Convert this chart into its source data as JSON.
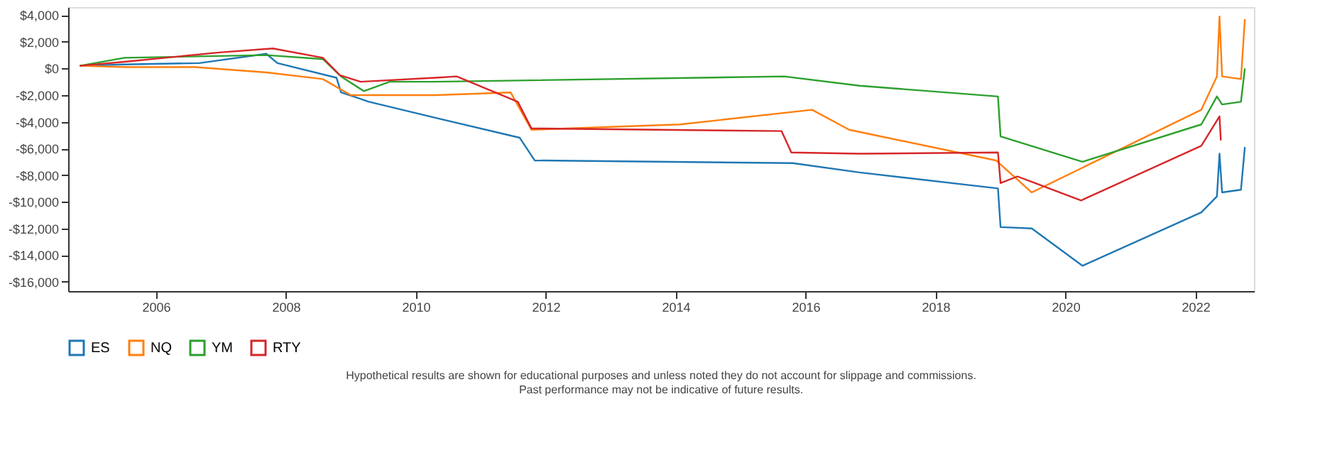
{
  "chart_data": {
    "type": "line",
    "xlim": [
      2004.65,
      2022.9
    ],
    "xticks": [
      2006,
      2008,
      2010,
      2012,
      2014,
      2016,
      2018,
      2020,
      2022
    ],
    "ylim": [
      -16700,
      4600
    ],
    "yticks": [
      {
        "value": 4000,
        "label": "$4,000"
      },
      {
        "value": 2000,
        "label": "$2,000"
      },
      {
        "value": 0,
        "label": "$0"
      },
      {
        "value": -2000,
        "label": "-$2,000"
      },
      {
        "value": -4000,
        "label": "-$4,000"
      },
      {
        "value": -6000,
        "label": "-$6,000"
      },
      {
        "value": -8000,
        "label": "-$8,000"
      },
      {
        "value": -10000,
        "label": "-$10,000"
      },
      {
        "value": -12000,
        "label": "-$12,000"
      },
      {
        "value": -14000,
        "label": "-$14,000"
      },
      {
        "value": -16000,
        "label": "-$16,000"
      }
    ],
    "grid": false,
    "legend": "bottom",
    "marker": "none",
    "line_style": "solid",
    "annotations": [
      "Hypothetical results are shown for educational purposes and unless noted they do not account for slippage and commissions.",
      "Past performance may not be indicative of future results."
    ],
    "series": [
      {
        "name": "ES",
        "color": "#1f77b4",
        "x": [
          2004.83,
          2005.52,
          2006.67,
          2007.7,
          2007.87,
          2008.78,
          2008.85,
          2009.28,
          2010.3,
          2011.6,
          2011.83,
          2015.8,
          2016.83,
          2018.96,
          2019.0,
          2019.48,
          2020.26,
          2022.09,
          2022.33,
          2022.37,
          2022.41,
          2022.7,
          2022.76
        ],
        "values": [
          200,
          300,
          400,
          1100,
          400,
          -700,
          -1800,
          -2500,
          -3700,
          -5200,
          -6900,
          -7100,
          -7800,
          -9000,
          -11900,
          -12000,
          -14800,
          -10800,
          -9600,
          -6400,
          -9300,
          -9100,
          -5900
        ]
      },
      {
        "name": "NQ",
        "color": "#ff7f0e",
        "x": [
          2004.83,
          2005.52,
          2006.6,
          2007.7,
          2008.57,
          2009.0,
          2010.3,
          2011.46,
          2011.78,
          2014.07,
          2016.1,
          2016.67,
          2018.93,
          2019.48,
          2022.09,
          2022.33,
          2022.37,
          2022.41,
          2022.7,
          2022.76
        ],
        "values": [
          200,
          100,
          100,
          -300,
          -800,
          -2000,
          -2000,
          -1800,
          -4600,
          -4200,
          -3100,
          -4600,
          -6900,
          -9300,
          -3100,
          -600,
          3900,
          -600,
          -800,
          3700
        ]
      },
      {
        "name": "YM",
        "color": "#2ca02c",
        "x": [
          2004.83,
          2005.52,
          2007.7,
          2008.57,
          2008.85,
          2009.2,
          2009.6,
          2010.3,
          2015.67,
          2016.83,
          2018.96,
          2019.0,
          2020.26,
          2022.09,
          2022.33,
          2022.41,
          2022.7,
          2022.76
        ],
        "values": [
          200,
          800,
          1000,
          700,
          -600,
          -1700,
          -1000,
          -1000,
          -600,
          -1300,
          -2100,
          -5100,
          -7000,
          -4200,
          -2100,
          -2700,
          -2500,
          0
        ]
      },
      {
        "name": "RTY",
        "color": "#d62728",
        "x": [
          2004.83,
          2005.52,
          2006.98,
          2007.8,
          2008.57,
          2008.83,
          2009.15,
          2010.3,
          2010.63,
          2011.57,
          2011.78,
          2015.63,
          2015.78,
          2016.83,
          2018.96,
          2019.0,
          2019.26,
          2020.24,
          2022.09,
          2022.37,
          2022.39
        ],
        "values": [
          200,
          500,
          1200,
          1500,
          800,
          -500,
          -1000,
          -700,
          -600,
          -2500,
          -4500,
          -4700,
          -6300,
          -6400,
          -6300,
          -8600,
          -8100,
          -9900,
          -5800,
          -3600,
          -5400
        ]
      }
    ]
  }
}
